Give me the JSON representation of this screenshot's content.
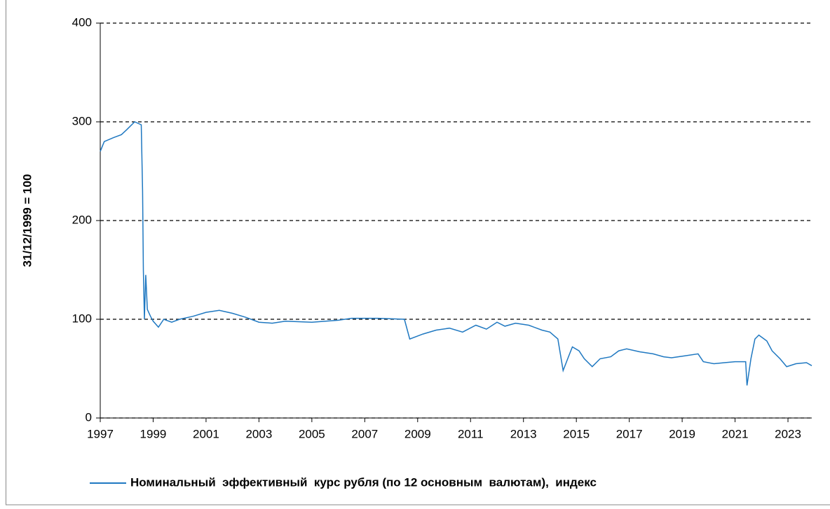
{
  "chart_data": {
    "type": "line",
    "y_label": "31/12/1999 = 100",
    "xlim": [
      1997,
      2023.9
    ],
    "xticks": [
      1997,
      1999,
      2001,
      2003,
      2005,
      2007,
      2009,
      2011,
      2013,
      2015,
      2017,
      2019,
      2021,
      2023
    ],
    "ylim": [
      0,
      400
    ],
    "yticks": [
      0,
      100,
      200,
      300,
      400
    ],
    "grid": true,
    "legend": "bottom",
    "x": [
      1997.0,
      1997.15,
      1997.5,
      1997.8,
      1998.0,
      1998.3,
      1998.55,
      1998.6,
      1998.63,
      1998.67,
      1998.72,
      1998.78,
      1998.9,
      1999.0,
      1999.2,
      1999.4,
      1999.7,
      2000.0,
      2000.5,
      2001.0,
      2001.5,
      2002.0,
      2002.5,
      2003.0,
      2003.5,
      2004.0,
      2005.0,
      2006.0,
      2006.5,
      2007.5,
      2008.5,
      2008.7,
      2009.2,
      2009.7,
      2010.2,
      2010.7,
      2011.2,
      2011.6,
      2012.0,
      2012.3,
      2012.7,
      2013.2,
      2013.7,
      2014.0,
      2014.3,
      2014.5,
      2014.7,
      2014.85,
      2015.1,
      2015.3,
      2015.6,
      2015.9,
      2016.3,
      2016.6,
      2016.9,
      2017.4,
      2017.9,
      2018.3,
      2018.6,
      2019.1,
      2019.6,
      2019.8,
      2020.2,
      2020.6,
      2021.0,
      2021.4,
      2021.45,
      2021.6,
      2021.75,
      2021.9,
      2022.2,
      2022.4,
      2022.7,
      2022.95,
      2023.3,
      2023.7,
      2023.9
    ],
    "series": [
      {
        "name": "Номинальный  эффективный  курс рубля (по 12 основным  валютам),  индекс",
        "color": "#1f78c1",
        "values": [
          270,
          280,
          284,
          287,
          292,
          300,
          297,
          230,
          150,
          100,
          145,
          110,
          103,
          98,
          92,
          100,
          97,
          100,
          103,
          107,
          109,
          106,
          102,
          97,
          96,
          98,
          97,
          99,
          101,
          101,
          100,
          80,
          85,
          89,
          91,
          87,
          94,
          90,
          97,
          93,
          96,
          94,
          89,
          87,
          80,
          48,
          62,
          72,
          68,
          60,
          52,
          60,
          62,
          68,
          70,
          67,
          65,
          62,
          61,
          63,
          65,
          57,
          55,
          56,
          57,
          57,
          33,
          60,
          80,
          84,
          78,
          68,
          60,
          52,
          55,
          56,
          53
        ]
      }
    ]
  }
}
